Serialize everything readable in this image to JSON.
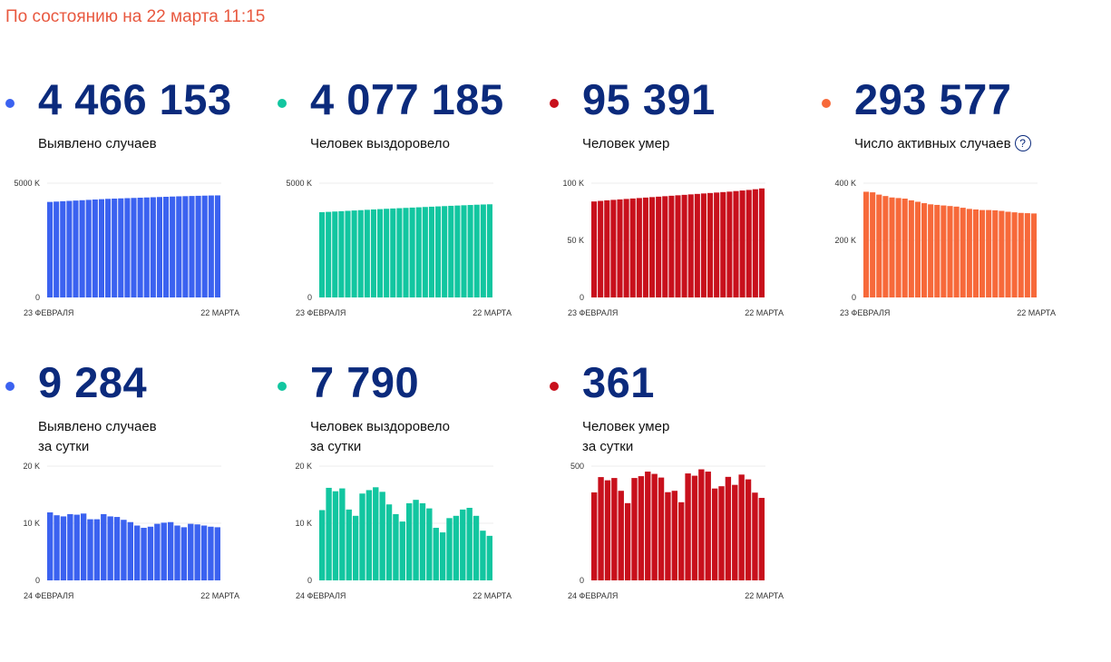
{
  "status_text": "По состоянию на 22 марта 11:15",
  "chart_data": [
    {
      "type": "bar",
      "total": "4 466 153",
      "label_lines": [
        "Выявлено случаев"
      ],
      "color": "#3b62f0",
      "ylim": [
        0,
        5000
      ],
      "yticks": [
        0,
        5000
      ],
      "ytick_labels": [
        "0",
        "5000 K"
      ],
      "xtick_labels": [
        "23 ФЕВРАЛЯ",
        "22 МАРТА"
      ],
      "values": [
        4180,
        4195,
        4210,
        4225,
        4240,
        4255,
        4270,
        4285,
        4300,
        4315,
        4325,
        4335,
        4345,
        4355,
        4365,
        4375,
        4385,
        4395,
        4405,
        4415,
        4425,
        4432,
        4440,
        4448,
        4455,
        4462,
        4466
      ]
    },
    {
      "type": "bar",
      "total": "4 077 185",
      "label_lines": [
        "Человек выздоровело"
      ],
      "color": "#12c6a0",
      "ylim": [
        0,
        5000
      ],
      "yticks": [
        0,
        5000
      ],
      "ytick_labels": [
        "0",
        "5000 K"
      ],
      "xtick_labels": [
        "23 ФЕВРАЛЯ",
        "22 МАРТА"
      ],
      "values": [
        3730,
        3745,
        3760,
        3775,
        3790,
        3805,
        3820,
        3835,
        3850,
        3865,
        3880,
        3893,
        3906,
        3919,
        3932,
        3945,
        3958,
        3971,
        3984,
        3997,
        4010,
        4022,
        4034,
        4046,
        4058,
        4068,
        4077
      ]
    },
    {
      "type": "bar",
      "total": "95 391",
      "label_lines": [
        "Человек умер"
      ],
      "color": "#c8101c",
      "ylim": [
        0,
        100
      ],
      "yticks": [
        0,
        50,
        100
      ],
      "ytick_labels": [
        "0",
        "50 K",
        "100 K"
      ],
      "xtick_labels": [
        "23 ФЕВРАЛЯ",
        "22 МАРТА"
      ],
      "values": [
        84,
        84.5,
        85,
        85.4,
        85.8,
        86.2,
        86.6,
        87,
        87.4,
        87.8,
        88.2,
        88.6,
        89,
        89.4,
        89.8,
        90.2,
        90.6,
        91,
        91.4,
        91.8,
        92.2,
        92.6,
        93.1,
        93.6,
        94.1,
        94.7,
        95.4
      ]
    },
    {
      "type": "bar",
      "total": "293 577",
      "label_lines": [
        "Число активных случаев"
      ],
      "help_icon": "?",
      "color": "#f7693a",
      "ylim": [
        0,
        400
      ],
      "yticks": [
        0,
        200,
        400
      ],
      "ytick_labels": [
        "0",
        "200 K",
        "400 K"
      ],
      "xtick_labels": [
        "23 ФЕВРАЛЯ",
        "22 МАРТА"
      ],
      "values": [
        370,
        368,
        360,
        355,
        350,
        348,
        346,
        340,
        335,
        330,
        326,
        324,
        322,
        320,
        318,
        314,
        310,
        308,
        306,
        306,
        305,
        303,
        300,
        298,
        296,
        295,
        294
      ]
    },
    {
      "type": "bar",
      "total": "9 284",
      "label_lines": [
        "Выявлено случаев",
        "за сутки"
      ],
      "color": "#3b62f0",
      "ylim": [
        0,
        20
      ],
      "yticks": [
        0,
        10,
        20
      ],
      "ytick_labels": [
        "0",
        "10 K",
        "20 K"
      ],
      "xtick_labels": [
        "24 ФЕВРАЛЯ",
        "22 МАРТА"
      ],
      "values": [
        11.9,
        11.4,
        11.2,
        11.6,
        11.5,
        11.7,
        10.7,
        10.7,
        11.6,
        11.2,
        11.1,
        10.6,
        10.2,
        9.6,
        9.2,
        9.4,
        9.9,
        10.1,
        10.2,
        9.6,
        9.3,
        9.9,
        9.8,
        9.6,
        9.4,
        9.3
      ]
    },
    {
      "type": "bar",
      "total": "7 790",
      "label_lines": [
        "Человек выздоровело",
        "за сутки"
      ],
      "color": "#12c6a0",
      "ylim": [
        0,
        20
      ],
      "yticks": [
        0,
        10,
        20
      ],
      "ytick_labels": [
        "0",
        "10 K",
        "20 K"
      ],
      "xtick_labels": [
        "24 ФЕВРАЛЯ",
        "22 МАРТА"
      ],
      "values": [
        12.3,
        16.2,
        15.6,
        16.1,
        12.4,
        11.3,
        15.2,
        15.8,
        16.3,
        15.5,
        13.3,
        11.6,
        10.3,
        13.5,
        14.1,
        13.5,
        12.6,
        9.2,
        8.4,
        10.9,
        11.3,
        12.4,
        12.7,
        11.3,
        8.7,
        7.8
      ]
    },
    {
      "type": "bar",
      "total": "361",
      "label_lines": [
        "Человек умер",
        "за сутки"
      ],
      "color": "#c8101c",
      "ylim": [
        0,
        500
      ],
      "yticks": [
        0,
        500
      ],
      "ytick_labels": [
        "0",
        "500"
      ],
      "xtick_labels": [
        "24 ФЕВРАЛЯ",
        "22 МАРТА"
      ],
      "values": [
        385,
        452,
        438,
        448,
        392,
        338,
        448,
        456,
        476,
        466,
        450,
        386,
        392,
        342,
        468,
        458,
        486,
        476,
        402,
        412,
        453,
        418,
        463,
        442,
        384,
        361
      ]
    }
  ]
}
